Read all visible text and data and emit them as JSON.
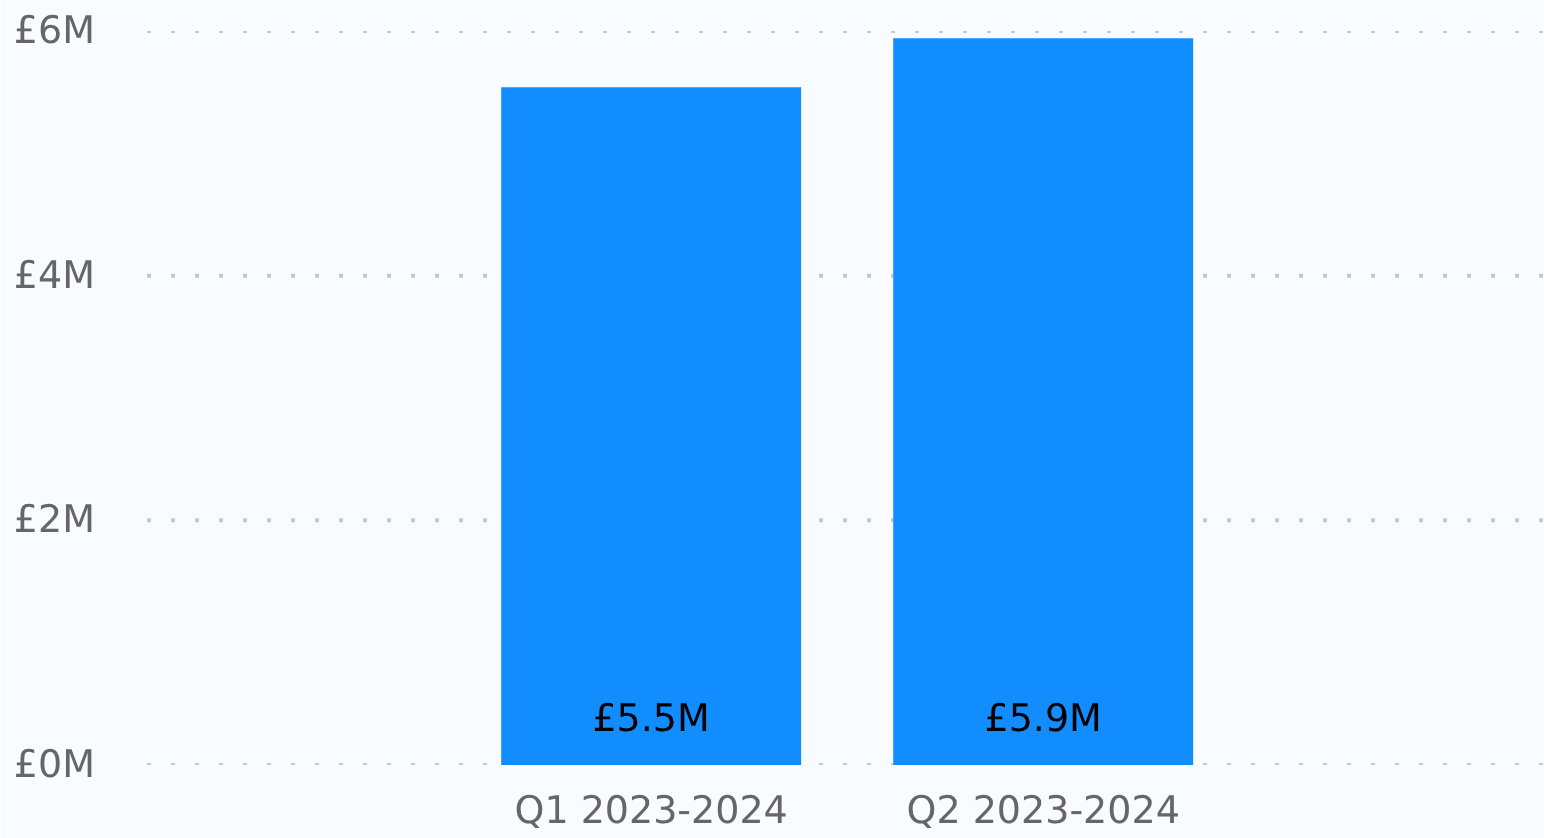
{
  "chart_data": {
    "type": "bar",
    "categories": [
      "Q1 2023-2024",
      "Q2 2023-2024"
    ],
    "values": [
      5.54,
      5.94
    ],
    "color": "#118dff",
    "value_labels": [
      "£5.5M",
      "£5.9M"
    ],
    "ylim": [
      0,
      6
    ],
    "yticks": [
      {
        "value": 0,
        "label": "£0M"
      },
      {
        "value": 2,
        "label": "£2M"
      },
      {
        "value": 4,
        "label": "£4M"
      },
      {
        "value": 6,
        "label": "£6M"
      }
    ],
    "grid": "y"
  }
}
